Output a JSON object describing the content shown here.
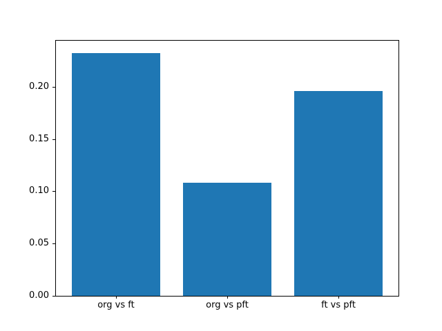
{
  "figure": {
    "background_color": "#ffffff"
  },
  "chart_data": {
    "type": "bar",
    "title": "",
    "xlabel": "",
    "ylabel": "",
    "categories": [
      "org vs ft",
      "org vs pft",
      "ft vs pft"
    ],
    "values": [
      0.232,
      0.108,
      0.196
    ],
    "bar_color": "#1f77b4",
    "bar_width_fraction": 0.8,
    "xlim": [
      -0.54,
      2.54
    ],
    "ylim": [
      0,
      0.244
    ],
    "yticks": [
      0.0,
      0.05,
      0.1,
      0.15,
      0.2
    ],
    "ytick_labels": [
      "0.00",
      "0.05",
      "0.10",
      "0.15",
      "0.20"
    ],
    "grid": false,
    "legend": null,
    "spines": "all"
  }
}
